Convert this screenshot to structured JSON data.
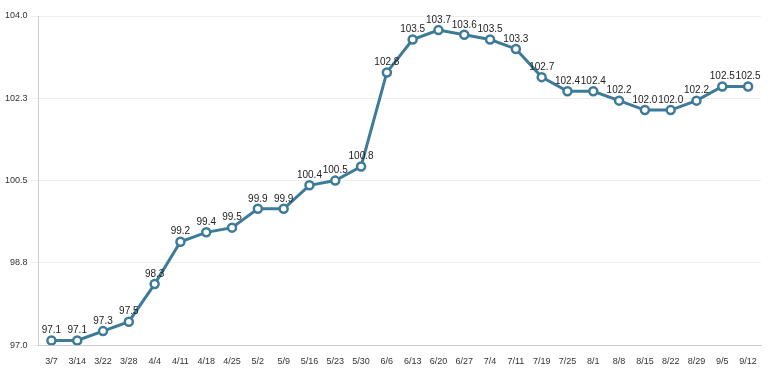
{
  "chart_data": {
    "type": "line",
    "categories": [
      "3/7",
      "3/14",
      "3/22",
      "3/28",
      "4/4",
      "4/11",
      "4/18",
      "4/25",
      "5/2",
      "5/9",
      "5/16",
      "5/23",
      "5/30",
      "6/6",
      "6/13",
      "6/20",
      "6/27",
      "7/4",
      "7/11",
      "7/19",
      "7/25",
      "8/1",
      "8/8",
      "8/15",
      "8/22",
      "8/29",
      "9/5",
      "9/12"
    ],
    "values": [
      97.1,
      97.1,
      97.3,
      97.5,
      98.3,
      99.2,
      99.4,
      99.5,
      99.9,
      99.9,
      100.4,
      100.5,
      100.8,
      102.8,
      103.5,
      103.7,
      103.6,
      103.5,
      103.3,
      102.7,
      102.4,
      102.4,
      102.2,
      102.0,
      102.0,
      102.2,
      102.5,
      102.5
    ],
    "value_labels": [
      "97.1",
      "97.1",
      "97.3",
      "97.5",
      "98.3",
      "99.2",
      "99.4",
      "99.5",
      "99.9",
      "99.9",
      "100.4",
      "100.5",
      "100.8",
      "102.8",
      "103.5",
      "103.7",
      "103.6",
      "103.5",
      "103.3",
      "102.7",
      "102.4",
      "102.4",
      "102.2",
      "102.0",
      "102.0",
      "102.2",
      "102.5",
      "102.5"
    ],
    "color": "#3d7b98",
    "marker": "circle",
    "ylim": [
      97,
      104
    ],
    "yticks": [
      {
        "value": 97,
        "label": "97.0"
      },
      {
        "value": 98.75,
        "label": "98.8"
      },
      {
        "value": 100.5,
        "label": "100.5"
      },
      {
        "value": 102.25,
        "label": "102.3"
      },
      {
        "value": 104,
        "label": "104.0"
      }
    ],
    "grid": true,
    "data_labels": true
  }
}
